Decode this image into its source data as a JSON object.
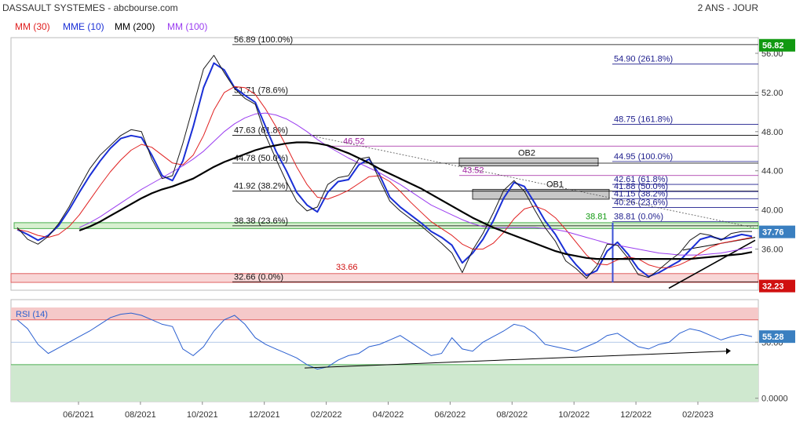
{
  "header": {
    "title": "DASSAULT SYSTEMES - abcbourse.com",
    "period": "2 ANS - JOUR",
    "legend": [
      {
        "label": "MM (30)",
        "color": "#e02020"
      },
      {
        "label": "MME (10)",
        "color": "#1a2fd6"
      },
      {
        "label": "MM (200)",
        "color": "#000000"
      },
      {
        "label": "MM (100)",
        "color": "#9a3cf0"
      }
    ]
  },
  "colors": {
    "price": "#1a1a1a",
    "fib_left": "#000000",
    "fib_right": "#1c1c8c",
    "fib_purple": "#a020a0",
    "ob_fill": "#c8c8c8",
    "support_red": "#e06060",
    "support_green": "#4caf50",
    "tag_green": "#119911",
    "tag_red": "#d01010",
    "tag_blue": "#3a7fc0",
    "rsi_line": "#2a5fd0",
    "rsi_high_zone": "#f5c9c9",
    "rsi_low_zone": "#cfe8cf"
  },
  "chart_data": {
    "type": "line",
    "x_axis": {
      "labels": [
        "06/2021",
        "08/2021",
        "10/2021",
        "12/2021",
        "02/2022",
        "04/2022",
        "06/2022",
        "08/2022",
        "10/2022",
        "12/2022",
        "02/2023"
      ]
    },
    "price_panel": {
      "y_axis": {
        "ticks": [
          "36.00",
          "40.00",
          "44.00",
          "48.00",
          "52.00",
          "56.00"
        ],
        "tick_values": [
          36,
          40,
          44,
          48,
          52,
          56
        ],
        "ylim": [
          31.8,
          57.6
        ]
      },
      "series": [
        {
          "name": "MME (10)",
          "color": "#1a2fd6",
          "values": [
            38.0,
            37.5,
            36.9,
            37.4,
            38.4,
            40.0,
            41.8,
            43.5,
            45.0,
            46.3,
            47.3,
            47.6,
            47.4,
            45.6,
            43.5,
            43.0,
            45.0,
            48.5,
            52.5,
            55.0,
            54.3,
            52.5,
            51.7,
            51.0,
            48.5,
            46.0,
            44.0,
            41.8,
            40.5,
            39.8,
            41.8,
            42.9,
            43.1,
            44.6,
            45.2,
            43.6,
            41.3,
            40.3,
            39.5,
            38.7,
            37.8,
            37.2,
            36.4,
            34.6,
            35.6,
            37.0,
            38.9,
            41.2,
            42.8,
            42.4,
            40.7,
            38.9,
            37.5,
            35.7,
            34.4,
            33.3,
            33.8,
            35.8,
            36.7,
            35.5,
            34.0,
            33.2,
            33.6,
            34.2,
            34.8,
            35.9,
            37.0,
            37.3,
            37.0,
            37.2,
            37.5,
            37.3
          ]
        },
        {
          "name": "MM (30)",
          "color": "#e02020",
          "values": [
            38.0,
            37.8,
            37.4,
            37.2,
            37.5,
            38.3,
            39.5,
            41.0,
            42.5,
            43.9,
            45.1,
            46.1,
            46.7,
            46.4,
            45.6,
            44.8,
            44.6,
            45.6,
            47.6,
            50.2,
            52.0,
            52.6,
            52.5,
            51.8,
            50.3,
            48.5,
            46.5,
            44.4,
            42.6,
            41.3,
            41.1,
            41.5,
            42.0,
            42.7,
            43.4,
            43.5,
            42.9,
            41.9,
            40.8,
            39.8,
            38.8,
            38.1,
            37.4,
            36.5,
            36.0,
            36.0,
            36.6,
            37.7,
            39.1,
            40.1,
            40.4,
            40.0,
            39.2,
            38.0,
            36.7,
            35.4,
            34.5,
            34.4,
            34.9,
            35.2,
            35.0,
            34.4,
            34.1,
            34.1,
            34.4,
            34.9,
            35.6,
            36.2,
            36.6,
            36.8,
            37.0,
            37.2
          ]
        },
        {
          "name": "MM (100)",
          "color": "#9a3cf0",
          "values": [
            null,
            null,
            null,
            null,
            null,
            null,
            38.2,
            38.7,
            39.3,
            40.0,
            40.7,
            41.4,
            42.1,
            42.7,
            43.3,
            43.9,
            44.5,
            45.2,
            46.0,
            47.0,
            48.0,
            48.8,
            49.4,
            49.8,
            49.9,
            49.7,
            49.3,
            48.7,
            48.0,
            47.2,
            46.5,
            45.9,
            45.3,
            44.8,
            44.3,
            43.8,
            43.2,
            42.6,
            41.9,
            41.2,
            40.5,
            40.0,
            39.5,
            39.0,
            38.6,
            38.3,
            38.2,
            38.2,
            38.2,
            38.2,
            38.2,
            38.1,
            38.0,
            37.8,
            37.5,
            37.2,
            36.9,
            36.6,
            36.4,
            36.2,
            36.0,
            35.8,
            35.6,
            35.5,
            35.4,
            35.4,
            35.4,
            35.5,
            35.6,
            35.8,
            36.0,
            36.2
          ]
        },
        {
          "name": "MM (200)",
          "color": "#000000",
          "values": [
            null,
            null,
            null,
            null,
            null,
            null,
            null,
            null,
            null,
            null,
            null,
            null,
            null,
            null,
            null,
            null,
            null,
            null,
            null,
            null,
            null,
            null,
            null,
            null,
            null,
            null,
            null,
            null,
            null,
            null,
            null,
            null,
            null,
            null,
            null,
            null,
            null,
            null,
            null,
            null,
            null,
            null,
            null,
            null,
            null,
            null,
            null,
            null,
            null,
            null,
            null,
            null,
            null,
            null,
            null,
            null,
            null,
            null,
            null,
            null,
            null,
            null,
            null,
            null,
            null,
            null,
            null,
            null,
            null,
            null,
            null,
            null
          ]
        },
        {
          "name": "MM (200)",
          "color": "#000000",
          "values": [
            null,
            null,
            null,
            null,
            null,
            null,
            37.9,
            38.3,
            38.8,
            39.4,
            40.0,
            40.6,
            41.2,
            41.7,
            42.1,
            42.4,
            42.8,
            43.2,
            43.8,
            44.4,
            44.9,
            45.3,
            45.7,
            46.1,
            46.4,
            46.6,
            46.8,
            46.9,
            46.9,
            46.8,
            46.6,
            46.2,
            45.8,
            45.3,
            44.8,
            44.2,
            43.7,
            43.2,
            42.7,
            42.2,
            41.6,
            41.0,
            40.4,
            39.8,
            39.2,
            38.7,
            38.2,
            37.8,
            37.4,
            37.0,
            36.6,
            36.2,
            35.8,
            35.5,
            35.3,
            35.1,
            35.0,
            35.0,
            35.0,
            35.0,
            35.0,
            35.0,
            35.0,
            35.0,
            35.0,
            35.0,
            35.1,
            35.2,
            35.3,
            35.4,
            35.5,
            35.7
          ]
        },
        {
          "name": "Cours",
          "color": "#1a1a1a",
          "values": [
            38.2,
            37.0,
            36.5,
            37.3,
            38.6,
            40.3,
            42.3,
            44.2,
            45.6,
            46.6,
            47.6,
            48.2,
            48.0,
            45.2,
            43.2,
            43.5,
            46.8,
            50.6,
            54.4,
            55.8,
            54.0,
            52.4,
            51.4,
            50.8,
            47.6,
            45.2,
            42.9,
            40.9,
            39.9,
            40.3,
            42.6,
            43.3,
            43.5,
            45.2,
            45.4,
            43.1,
            40.9,
            39.9,
            39.1,
            38.4,
            37.5,
            36.6,
            35.6,
            33.6,
            35.9,
            37.6,
            39.7,
            42.0,
            43.0,
            41.9,
            40.0,
            38.2,
            36.8,
            34.8,
            34.0,
            33.0,
            34.3,
            36.5,
            36.4,
            35.1,
            33.4,
            33.1,
            33.9,
            34.8,
            35.6,
            36.9,
            37.6,
            37.4,
            36.9,
            37.6,
            37.8,
            37.8
          ]
        }
      ],
      "fibonacci_left": [
        {
          "label": "56.89  (100.0%)",
          "value": 56.89
        },
        {
          "label": "51.71  (78.6%)",
          "value": 51.71
        },
        {
          "label": "47.63  (61.8%)",
          "value": 47.63
        },
        {
          "label": "44.78  (50.0%)",
          "value": 44.78
        },
        {
          "label": "41.92  (38.2%)",
          "value": 41.92
        },
        {
          "label": "38.38  (23.6%)",
          "value": 38.38
        },
        {
          "label": "32.66  (0.0%)",
          "value": 32.66
        }
      ],
      "fibonacci_right": [
        {
          "label": "54.90  (261.8%)",
          "value": 54.9
        },
        {
          "label": "48.75  (161.8%)",
          "value": 48.75
        },
        {
          "label": "44.95  (100.0%)",
          "value": 44.95
        },
        {
          "label": "42.61  (61.8%)",
          "value": 42.61
        },
        {
          "label": "41.88  (50.0%)",
          "value": 41.88
        },
        {
          "label": "41.15  (38.2%)",
          "value": 41.15
        },
        {
          "label": "40.26  (23.6%)",
          "value": 40.26
        },
        {
          "label": "38.81  (0.0%)",
          "value": 38.81
        }
      ],
      "extra_levels": [
        {
          "label": "46.52",
          "value": 46.52,
          "color": "#a020a0"
        },
        {
          "label": "43.52",
          "value": 43.52,
          "color": "#a020a0"
        },
        {
          "label": "33.66",
          "value": 33.66,
          "color": "#d01010"
        },
        {
          "label": "38.81",
          "value": 38.81,
          "color": "#119911"
        }
      ],
      "order_blocks": [
        {
          "label": "OB2",
          "low": 44.5,
          "high": 45.3
        },
        {
          "label": "OB1",
          "low": 41.1,
          "high": 42.1
        }
      ],
      "price_tags": [
        {
          "label": "56.82",
          "value": 56.82,
          "color": "#119911"
        },
        {
          "label": "37.76",
          "value": 37.76,
          "color": "#3a7fc0"
        },
        {
          "label": "32.23",
          "value": 32.23,
          "color": "#d01010"
        }
      ]
    },
    "rsi_panel": {
      "title": "RSI (14)",
      "y_axis": {
        "ticks": [
          "0.0000",
          "50.00"
        ],
        "tick_values": [
          0,
          50
        ],
        "ylim": [
          -3,
          88
        ]
      },
      "overbought": 70,
      "oversold": 30,
      "last_value_tag": "55.28",
      "values": [
        70,
        62,
        48,
        40,
        45,
        50,
        55,
        60,
        66,
        72,
        75,
        76,
        74,
        70,
        66,
        64,
        44,
        38,
        46,
        60,
        70,
        74,
        66,
        54,
        48,
        44,
        40,
        36,
        30,
        26,
        28,
        34,
        38,
        40,
        46,
        48,
        52,
        56,
        50,
        44,
        38,
        40,
        54,
        44,
        42,
        50,
        55,
        60,
        66,
        64,
        58,
        48,
        46,
        44,
        42,
        46,
        50,
        56,
        58,
        52,
        46,
        44,
        48,
        50,
        58,
        62,
        60,
        56,
        52,
        55,
        57,
        55
      ]
    }
  }
}
